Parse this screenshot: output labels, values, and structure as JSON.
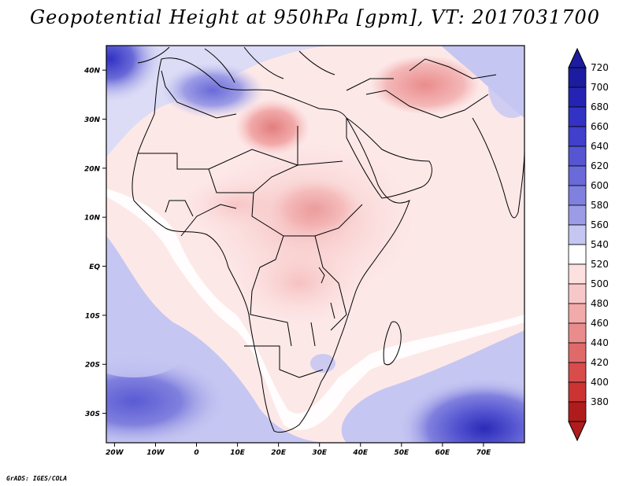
{
  "title": "Geopotential Height at 950hPa [gpm], VT: 2017031700",
  "credit": "GrADS: IGES/COLA",
  "map": {
    "lat_labels": [
      "40N",
      "30N",
      "20N",
      "10N",
      "EQ",
      "10S",
      "20S",
      "30S"
    ],
    "lon_labels": [
      "20W",
      "10W",
      "0",
      "10E",
      "20E",
      "30E",
      "40E",
      "50E",
      "60E",
      "70E"
    ],
    "extent": {
      "lon_min": -22,
      "lon_max": 80,
      "lat_min": -36,
      "lat_max": 45
    }
  },
  "colorbar": {
    "levels": [
      "720",
      "700",
      "680",
      "660",
      "640",
      "620",
      "600",
      "580",
      "560",
      "540",
      "520",
      "500",
      "480",
      "460",
      "440",
      "420",
      "400",
      "380"
    ],
    "colors": [
      "#1c1ca0",
      "#2424b4",
      "#3232c4",
      "#4040cc",
      "#5656d2",
      "#6a6ad8",
      "#8080de",
      "#9c9ce6",
      "#c6c6f2",
      "#ffffff",
      "#fde0e0",
      "#f8c8c8",
      "#f2aaaa",
      "#ea8c8c",
      "#e06a6a",
      "#d84c4c",
      "#cc3434",
      "#b01c1c"
    ]
  }
}
